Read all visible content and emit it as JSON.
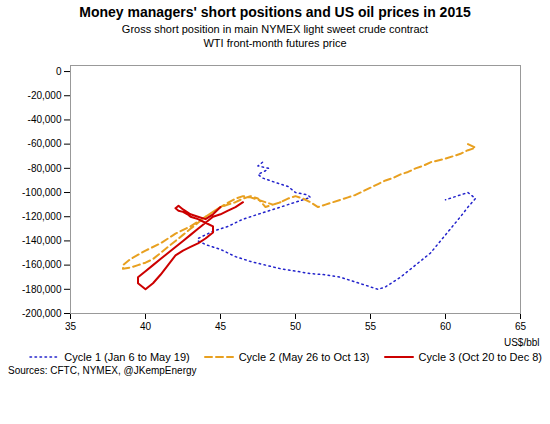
{
  "chart_data": {
    "type": "line",
    "title": "Money managers' short positions and US oil prices in 2015",
    "subtitle": "Gross short position in main NYMEX light sweet crude contract\nWTI front-month futures price",
    "xlabel": "US$/bbl",
    "caption": "Sources: CFTC, NYMEX, @JKempEnergy",
    "xlim": [
      35,
      65
    ],
    "ylim": [
      -200000,
      5000
    ],
    "xticks": [
      35,
      40,
      45,
      50,
      55,
      60,
      65
    ],
    "yticks": [
      0,
      {
        "value": -20000,
        "label": "-20,000"
      },
      {
        "value": -40000,
        "label": "-40,000"
      },
      {
        "value": -60000,
        "label": "-60,000"
      },
      {
        "value": -80000,
        "label": "-80,000"
      },
      {
        "value": -100000,
        "label": "-100,000"
      },
      {
        "value": -120000,
        "label": "-120,000"
      },
      {
        "value": -140000,
        "label": "-140,000"
      },
      {
        "value": -160000,
        "label": "-160,000"
      },
      {
        "value": -180000,
        "label": "-180,000"
      },
      {
        "value": -200000,
        "label": "-200,000"
      }
    ],
    "grid": false,
    "legend": "lower right",
    "series": [
      {
        "name": "Cycle 1 (Jan 6 to May 19)",
        "color": "#2222cc",
        "line_style": "dotted",
        "x": [
          47.8,
          47.5,
          48.2,
          48.0,
          47.5,
          47.8,
          48.5,
          49.5,
          50.0,
          50.8,
          51.0,
          50.5,
          50.0,
          49.5,
          49.0,
          48.5,
          48.0,
          47.5,
          47.0,
          46.5,
          46.0,
          45.5,
          45.0,
          44.5,
          44.0,
          43.5,
          43.5,
          44.0,
          44.5,
          45.0,
          45.5,
          46.0,
          47.0,
          48.0,
          49.0,
          50.0,
          51.0,
          52.0,
          53.0,
          53.5,
          54.0,
          54.5,
          55.0,
          55.5,
          56.0,
          57.0,
          58.0,
          59.0,
          60.0,
          61.0,
          61.5,
          62.0,
          61.5,
          61.0,
          60.5,
          60.0
        ],
        "values": [
          -75000,
          -78000,
          -80000,
          -82000,
          -85000,
          -88000,
          -91000,
          -95000,
          -100000,
          -102000,
          -104000,
          -106000,
          -108000,
          -110000,
          -112000,
          -114000,
          -116000,
          -118000,
          -120000,
          -122000,
          -125000,
          -128000,
          -130000,
          -132000,
          -135000,
          -138000,
          -140000,
          -143000,
          -145000,
          -147000,
          -150000,
          -153000,
          -157000,
          -160000,
          -163000,
          -165000,
          -167000,
          -168000,
          -170000,
          -172000,
          -174000,
          -176000,
          -178000,
          -180000,
          -178000,
          -170000,
          -160000,
          -150000,
          -135000,
          -120000,
          -112000,
          -105000,
          -100000,
          -102000,
          -104000,
          -106000
        ]
      },
      {
        "name": "Cycle 2 (May 26 to Oct 13)",
        "color": "#e8a020",
        "line_style": "dashed",
        "x": [
          61.5,
          62.0,
          61.5,
          61.0,
          60.5,
          60.0,
          59.0,
          58.5,
          58.0,
          57.5,
          57.0,
          56.5,
          56.0,
          55.5,
          55.0,
          54.5,
          54.0,
          53.5,
          53.0,
          52.5,
          52.0,
          51.5,
          51.0,
          50.5,
          50.0,
          49.5,
          49.0,
          48.5,
          48.0,
          47.5,
          47.0,
          46.5,
          46.0,
          45.5,
          45.0,
          44.5,
          44.0,
          43.5,
          43.0,
          42.5,
          42.0,
          41.5,
          41.0,
          40.5,
          40.0,
          39.5,
          39.0,
          38.5,
          38.5,
          39.0,
          40.0,
          41.0,
          41.5,
          42.0,
          43.0,
          44.0,
          45.0,
          46.0,
          46.5,
          47.0,
          47.5,
          48.0,
          48.5,
          49.0
        ],
        "values": [
          -60000,
          -63000,
          -65000,
          -68000,
          -70000,
          -72000,
          -75000,
          -78000,
          -80000,
          -83000,
          -85000,
          -88000,
          -90000,
          -93000,
          -96000,
          -99000,
          -102000,
          -104000,
          -106000,
          -108000,
          -110000,
          -112000,
          -108000,
          -105000,
          -103000,
          -105000,
          -108000,
          -110000,
          -112000,
          -105000,
          -103000,
          -105000,
          -108000,
          -110000,
          -112000,
          -116000,
          -120000,
          -125000,
          -130000,
          -135000,
          -140000,
          -145000,
          -150000,
          -155000,
          -158000,
          -160000,
          -162000,
          -163000,
          -160000,
          -155000,
          -148000,
          -142000,
          -138000,
          -134000,
          -128000,
          -120000,
          -112000,
          -105000,
          -103000,
          -104000,
          -106000,
          -108000,
          -110000,
          -108000
        ]
      },
      {
        "name": "Cycle 3 (Oct 20 to Dec 8)",
        "color": "#cc0000",
        "line_style": "solid",
        "x": [
          46.5,
          46.0,
          45.5,
          45.0,
          44.5,
          44.0,
          43.5,
          43.0,
          42.5,
          42.0,
          41.5,
          41.0,
          40.5,
          40.0,
          39.5,
          39.5,
          40.0,
          40.5,
          41.0,
          41.5,
          42.0,
          42.5,
          43.0,
          43.5,
          44.0,
          44.5,
          44.5,
          44.0,
          43.5,
          43.0,
          42.8,
          42.5,
          42.2,
          42.0,
          42.2,
          42.5,
          43.0,
          43.5,
          44.0,
          44.5,
          45.0
        ],
        "values": [
          -108000,
          -112000,
          -115000,
          -118000,
          -120000,
          -125000,
          -130000,
          -135000,
          -140000,
          -145000,
          -150000,
          -155000,
          -160000,
          -165000,
          -170000,
          -175000,
          -180000,
          -175000,
          -168000,
          -160000,
          -152000,
          -148000,
          -145000,
          -142000,
          -138000,
          -133000,
          -128000,
          -125000,
          -122000,
          -120000,
          -118000,
          -116000,
          -115000,
          -113000,
          -111000,
          -114000,
          -118000,
          -120000,
          -122000,
          -118000,
          -112000
        ]
      }
    ]
  }
}
